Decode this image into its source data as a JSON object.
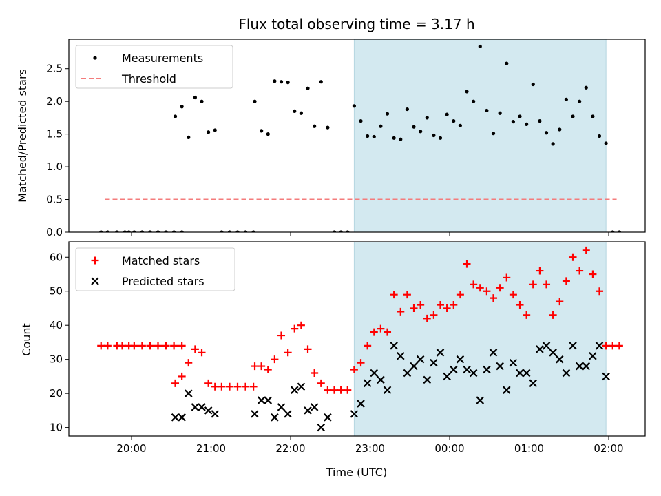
{
  "chart_data": [
    {
      "type": "scatter",
      "title": "Flux total observing time = 3.17 h",
      "xlabel": "",
      "ylabel": "Matched/Predicted stars",
      "ylim": [
        0,
        2.95
      ],
      "yticks": [
        "0.0",
        "0.5",
        "1.0",
        "1.5",
        "2.0",
        "2.5"
      ],
      "shaded_region": {
        "x_start": "22:48",
        "x_end": "01:58",
        "color": "#d3e9f0"
      },
      "threshold": {
        "name": "Threshold",
        "value": 0.5,
        "x_start": "19:40",
        "x_end": "02:06",
        "color": "#f47c7c"
      },
      "legend": {
        "location": "upper left",
        "items": [
          "Measurements",
          "Threshold"
        ]
      },
      "series": [
        {
          "name": "Measurements",
          "marker": "dot",
          "color": "#000000",
          "points": [
            [
              "19:37",
              0
            ],
            [
              "19:42",
              0
            ],
            [
              "19:49",
              0
            ],
            [
              "19:55",
              0
            ],
            [
              "19:58",
              0
            ],
            [
              "20:02",
              0
            ],
            [
              "20:08",
              0
            ],
            [
              "20:14",
              0
            ],
            [
              "20:20",
              0
            ],
            [
              "20:26",
              0
            ],
            [
              "20:32",
              0
            ],
            [
              "20:38",
              0
            ],
            [
              "20:33",
              1.77
            ],
            [
              "20:38",
              1.92
            ],
            [
              "20:43",
              1.45
            ],
            [
              "20:48",
              2.06
            ],
            [
              "20:53",
              2.0
            ],
            [
              "20:58",
              1.53
            ],
            [
              "21:03",
              1.56
            ],
            [
              "21:08",
              0
            ],
            [
              "21:14",
              0
            ],
            [
              "21:20",
              0
            ],
            [
              "21:26",
              0
            ],
            [
              "21:32",
              0
            ],
            [
              "21:33",
              2.0
            ],
            [
              "21:38",
              1.55
            ],
            [
              "21:43",
              1.5
            ],
            [
              "21:48",
              2.31
            ],
            [
              "21:53",
              2.3
            ],
            [
              "21:58",
              2.29
            ],
            [
              "22:03",
              1.85
            ],
            [
              "22:08",
              1.82
            ],
            [
              "22:13",
              2.2
            ],
            [
              "22:18",
              1.62
            ],
            [
              "22:23",
              2.3
            ],
            [
              "22:28",
              1.6
            ],
            [
              "22:33",
              0
            ],
            [
              "22:38",
              0
            ],
            [
              "22:43",
              0
            ],
            [
              "22:48",
              1.93
            ],
            [
              "22:53",
              1.7
            ],
            [
              "22:58",
              1.47
            ],
            [
              "23:03",
              1.46
            ],
            [
              "23:08",
              1.62
            ],
            [
              "23:13",
              1.81
            ],
            [
              "23:18",
              1.44
            ],
            [
              "23:23",
              1.42
            ],
            [
              "23:28",
              1.88
            ],
            [
              "23:33",
              1.61
            ],
            [
              "23:38",
              1.54
            ],
            [
              "23:43",
              1.75
            ],
            [
              "23:48",
              1.48
            ],
            [
              "23:53",
              1.44
            ],
            [
              "23:58",
              1.8
            ],
            [
              "00:03",
              1.7
            ],
            [
              "00:08",
              1.63
            ],
            [
              "00:13",
              2.15
            ],
            [
              "00:18",
              2.0
            ],
            [
              "00:23",
              2.84
            ],
            [
              "00:28",
              1.86
            ],
            [
              "00:33",
              1.51
            ],
            [
              "00:38",
              1.82
            ],
            [
              "00:43",
              2.58
            ],
            [
              "00:48",
              1.69
            ],
            [
              "00:53",
              1.77
            ],
            [
              "00:58",
              1.65
            ],
            [
              "01:03",
              2.26
            ],
            [
              "01:08",
              1.7
            ],
            [
              "01:13",
              1.52
            ],
            [
              "01:18",
              1.35
            ],
            [
              "01:23",
              1.57
            ],
            [
              "01:28",
              2.03
            ],
            [
              "01:33",
              1.77
            ],
            [
              "01:38",
              2.0
            ],
            [
              "01:43",
              2.21
            ],
            [
              "01:48",
              1.77
            ],
            [
              "01:53",
              1.47
            ],
            [
              "01:58",
              1.36
            ],
            [
              "02:03",
              0
            ],
            [
              "02:08",
              0
            ]
          ]
        }
      ]
    },
    {
      "type": "scatter",
      "title": "",
      "xlabel": "Time (UTC)",
      "ylabel": "Count",
      "ylim": [
        7.5,
        64.5
      ],
      "yticks": [
        "10",
        "20",
        "30",
        "40",
        "50",
        "60"
      ],
      "xticks": [
        "20:00",
        "21:00",
        "22:00",
        "23:00",
        "00:00",
        "01:00",
        "02:00"
      ],
      "shaded_region": {
        "x_start": "22:48",
        "x_end": "01:58",
        "color": "#d3e9f0"
      },
      "legend": {
        "location": "upper left",
        "items": [
          "Matched stars",
          "Predicted stars"
        ]
      },
      "series": [
        {
          "name": "Matched stars",
          "marker": "plus",
          "color": "#ff0000",
          "points": [
            [
              "19:37",
              34
            ],
            [
              "19:42",
              34
            ],
            [
              "19:49",
              34
            ],
            [
              "19:53",
              34
            ],
            [
              "19:58",
              34
            ],
            [
              "20:02",
              34
            ],
            [
              "20:08",
              34
            ],
            [
              "20:14",
              34
            ],
            [
              "20:20",
              34
            ],
            [
              "20:26",
              34
            ],
            [
              "20:32",
              34
            ],
            [
              "20:38",
              34
            ],
            [
              "20:33",
              23
            ],
            [
              "20:38",
              25
            ],
            [
              "20:43",
              29
            ],
            [
              "20:48",
              33
            ],
            [
              "20:53",
              32
            ],
            [
              "20:58",
              23
            ],
            [
              "21:03",
              22
            ],
            [
              "21:08",
              22
            ],
            [
              "21:14",
              22
            ],
            [
              "21:20",
              22
            ],
            [
              "21:26",
              22
            ],
            [
              "21:32",
              22
            ],
            [
              "21:33",
              28
            ],
            [
              "21:38",
              28
            ],
            [
              "21:43",
              27
            ],
            [
              "21:48",
              30
            ],
            [
              "21:53",
              37
            ],
            [
              "21:58",
              32
            ],
            [
              "22:03",
              39
            ],
            [
              "22:08",
              40
            ],
            [
              "22:13",
              33
            ],
            [
              "22:18",
              26
            ],
            [
              "22:23",
              23
            ],
            [
              "22:28",
              21
            ],
            [
              "22:33",
              21
            ],
            [
              "22:38",
              21
            ],
            [
              "22:43",
              21
            ],
            [
              "22:48",
              27
            ],
            [
              "22:53",
              29
            ],
            [
              "22:58",
              34
            ],
            [
              "23:03",
              38
            ],
            [
              "23:08",
              39
            ],
            [
              "23:13",
              38
            ],
            [
              "23:18",
              49
            ],
            [
              "23:23",
              44
            ],
            [
              "23:28",
              49
            ],
            [
              "23:33",
              45
            ],
            [
              "23:38",
              46
            ],
            [
              "23:43",
              42
            ],
            [
              "23:48",
              43
            ],
            [
              "23:53",
              46
            ],
            [
              "23:58",
              45
            ],
            [
              "00:03",
              46
            ],
            [
              "00:08",
              49
            ],
            [
              "00:13",
              58
            ],
            [
              "00:18",
              52
            ],
            [
              "00:23",
              51
            ],
            [
              "00:28",
              50
            ],
            [
              "00:33",
              48
            ],
            [
              "00:38",
              51
            ],
            [
              "00:43",
              54
            ],
            [
              "00:48",
              49
            ],
            [
              "00:53",
              46
            ],
            [
              "00:58",
              43
            ],
            [
              "01:03",
              52
            ],
            [
              "01:08",
              56
            ],
            [
              "01:13",
              52
            ],
            [
              "01:18",
              43
            ],
            [
              "01:23",
              47
            ],
            [
              "01:28",
              53
            ],
            [
              "01:33",
              60
            ],
            [
              "01:38",
              56
            ],
            [
              "01:43",
              62
            ],
            [
              "01:48",
              55
            ],
            [
              "01:53",
              50
            ],
            [
              "01:58",
              34
            ],
            [
              "02:03",
              34
            ],
            [
              "02:08",
              34
            ]
          ]
        },
        {
          "name": "Predicted stars",
          "marker": "x",
          "color": "#000000",
          "points": [
            [
              "20:33",
              13
            ],
            [
              "20:38",
              13
            ],
            [
              "20:43",
              20
            ],
            [
              "20:48",
              16
            ],
            [
              "20:53",
              16
            ],
            [
              "20:58",
              15
            ],
            [
              "21:03",
              14
            ],
            [
              "21:33",
              14
            ],
            [
              "21:38",
              18
            ],
            [
              "21:43",
              18
            ],
            [
              "21:48",
              13
            ],
            [
              "21:53",
              16
            ],
            [
              "21:58",
              14
            ],
            [
              "22:03",
              21
            ],
            [
              "22:08",
              22
            ],
            [
              "22:13",
              15
            ],
            [
              "22:18",
              16
            ],
            [
              "22:23",
              10
            ],
            [
              "22:28",
              13
            ],
            [
              "22:48",
              14
            ],
            [
              "22:53",
              17
            ],
            [
              "22:58",
              23
            ],
            [
              "23:03",
              26
            ],
            [
              "23:08",
              24
            ],
            [
              "23:13",
              21
            ],
            [
              "23:18",
              34
            ],
            [
              "23:23",
              31
            ],
            [
              "23:28",
              26
            ],
            [
              "23:33",
              28
            ],
            [
              "23:38",
              30
            ],
            [
              "23:43",
              24
            ],
            [
              "23:48",
              29
            ],
            [
              "23:53",
              32
            ],
            [
              "23:58",
              25
            ],
            [
              "00:03",
              27
            ],
            [
              "00:08",
              30
            ],
            [
              "00:13",
              27
            ],
            [
              "00:18",
              26
            ],
            [
              "00:23",
              18
            ],
            [
              "00:28",
              27
            ],
            [
              "00:33",
              32
            ],
            [
              "00:38",
              28
            ],
            [
              "00:43",
              21
            ],
            [
              "00:48",
              29
            ],
            [
              "00:53",
              26
            ],
            [
              "00:58",
              26
            ],
            [
              "01:03",
              23
            ],
            [
              "01:08",
              33
            ],
            [
              "01:13",
              34
            ],
            [
              "01:18",
              32
            ],
            [
              "01:23",
              30
            ],
            [
              "01:28",
              26
            ],
            [
              "01:33",
              34
            ],
            [
              "01:38",
              28
            ],
            [
              "01:43",
              28
            ],
            [
              "01:48",
              31
            ],
            [
              "01:53",
              34
            ],
            [
              "01:58",
              25
            ]
          ]
        }
      ]
    }
  ]
}
